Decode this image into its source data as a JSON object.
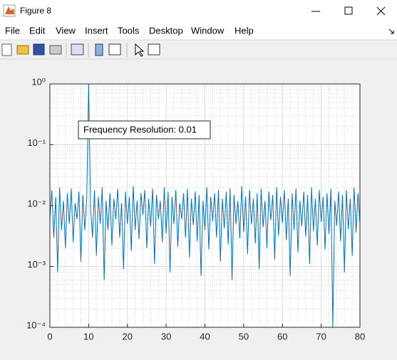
{
  "window": {
    "title": "Figure 8",
    "menu": [
      "File",
      "Edit",
      "View",
      "Insert",
      "Tools",
      "Desktop",
      "Window",
      "Help"
    ]
  },
  "chart_data": {
    "type": "line",
    "annotation": "Frequency Resolution: 0.01",
    "color": "#0072bd",
    "yscale": "log",
    "grid": true,
    "minor_grid": true,
    "xlim": [
      0,
      80
    ],
    "xticks": [
      0,
      10,
      20,
      30,
      40,
      50,
      60,
      70,
      80
    ],
    "ylim": [
      0.0001,
      1
    ],
    "yticks": [
      {
        "value": 0.0001,
        "label": "10⁻⁴"
      },
      {
        "value": 0.001,
        "label": "10⁻³"
      },
      {
        "value": 0.01,
        "label": "10⁻²"
      },
      {
        "value": 0.1,
        "label": "10⁻¹"
      },
      {
        "value": 1,
        "label": "10⁰"
      }
    ],
    "x": [
      0,
      0.5,
      1,
      1.5,
      2,
      2.5,
      3,
      3.5,
      4,
      4.5,
      5,
      5.5,
      6,
      6.5,
      7,
      7.5,
      8,
      8.5,
      9,
      9.5,
      10,
      10.5,
      11,
      11.5,
      12,
      12.5,
      13,
      13.5,
      14,
      14.5,
      15,
      15.5,
      16,
      16.5,
      17,
      17.5,
      18,
      18.5,
      19,
      19.5,
      20,
      20.5,
      21,
      21.5,
      22,
      22.5,
      23,
      23.5,
      24,
      24.5,
      25,
      25.5,
      26,
      26.5,
      27,
      27.5,
      28,
      28.5,
      29,
      29.5,
      30,
      30.5,
      31,
      31.5,
      32,
      32.5,
      33,
      33.5,
      34,
      34.5,
      35,
      35.5,
      36,
      36.5,
      37,
      37.5,
      38,
      38.5,
      39,
      39.5,
      40,
      40.5,
      41,
      41.5,
      42,
      42.5,
      43,
      43.5,
      44,
      44.5,
      45,
      45.5,
      46,
      46.5,
      47,
      47.5,
      48,
      48.5,
      49,
      49.5,
      50,
      50.5,
      51,
      51.5,
      52,
      52.5,
      53,
      53.5,
      54,
      54.5,
      55,
      55.5,
      56,
      56.5,
      57,
      57.5,
      58,
      58.5,
      59,
      59.5,
      60,
      60.5,
      61,
      61.5,
      62,
      62.5,
      63,
      63.5,
      64,
      64.5,
      65,
      65.5,
      66,
      66.5,
      67,
      67.5,
      68,
      68.5,
      69,
      69.5,
      70,
      70.5,
      71,
      71.5,
      72,
      72.5,
      73,
      73.5,
      74,
      74.5,
      75,
      75.5,
      76,
      76.5,
      77,
      77.5,
      78,
      78.5,
      79,
      79.5,
      80
    ],
    "values": [
      0.006,
      0.018,
      0.003,
      0.014,
      0.0008,
      0.02,
      0.004,
      0.012,
      0.002,
      0.016,
      0.005,
      0.019,
      0.0025,
      0.011,
      0.006,
      0.017,
      0.0012,
      0.015,
      0.004,
      0.013,
      1,
      0.009,
      0.003,
      0.018,
      0.0015,
      0.014,
      0.005,
      0.02,
      0.0006,
      0.012,
      0.004,
      0.016,
      0.0022,
      0.013,
      0.006,
      0.019,
      0.003,
      0.011,
      0.0009,
      0.017,
      0.005,
      0.014,
      0.0018,
      0.021,
      0.004,
      0.012,
      0.0028,
      0.016,
      0.007,
      0.018,
      0.002,
      0.013,
      0.0045,
      0.019,
      0.0011,
      0.015,
      0.006,
      0.012,
      0.0025,
      0.02,
      0.0035,
      0.017,
      0.0008,
      0.014,
      0.005,
      0.018,
      0.0021,
      0.011,
      0.006,
      0.016,
      0.003,
      0.019,
      0.0014,
      0.013,
      0.0048,
      0.017,
      0.0026,
      0.015,
      0.0007,
      0.012,
      0.004,
      0.02,
      0.0019,
      0.014,
      0.0055,
      0.016,
      0.003,
      0.018,
      0.0012,
      0.013,
      0.0042,
      0.017,
      0.0023,
      0.019,
      0.0006,
      0.015,
      0.005,
      0.012,
      0.0029,
      0.021,
      0.0037,
      0.014,
      0.0016,
      0.018,
      0.0049,
      0.013,
      0.0024,
      0.016,
      0.0009,
      0.019,
      0.0044,
      0.012,
      0.002,
      0.017,
      0.0058,
      0.015,
      0.0013,
      0.02,
      0.0032,
      0.014,
      0.0052,
      0.018,
      0.0027,
      0.013,
      0.0007,
      0.016,
      0.004,
      0.019,
      0.0017,
      0.012,
      0.0046,
      0.017,
      0.0031,
      0.015,
      0.0011,
      0.02,
      0.0038,
      0.013,
      0.0022,
      0.018,
      0.0054,
      0.014,
      0.0019,
      0.016,
      0.0034,
      0.019,
      0.0001,
      0.012,
      0.0047,
      0.017,
      0.0026,
      0.015,
      0.0008,
      0.018,
      0.0041,
      0.013,
      0.0015,
      0.02,
      0.0036,
      0.016,
      0.005
    ]
  }
}
